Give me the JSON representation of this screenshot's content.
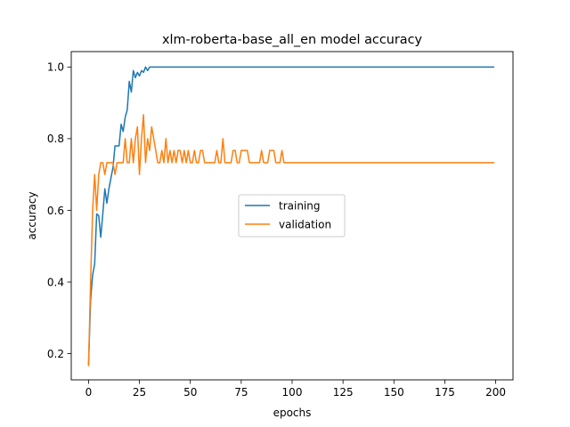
{
  "chart_data": {
    "type": "line",
    "title": "xlm-roberta-base_all_en model accuracy",
    "xlabel": "epochs",
    "ylabel": "accuracy",
    "xlim": [
      -8.5,
      208.5
    ],
    "ylim": [
      0.127,
      1.043
    ],
    "xticks": [
      0,
      25,
      50,
      75,
      100,
      125,
      150,
      175,
      200
    ],
    "yticks": [
      0.2,
      0.4,
      0.6,
      0.8,
      1.0
    ],
    "ytick_labels": [
      "0.2",
      "0.4",
      "0.6",
      "0.8",
      "1.0"
    ],
    "grid": false,
    "legend_position": "center",
    "series": [
      {
        "name": "training",
        "color": "#1f77b4",
        "x": [
          0,
          1,
          2,
          3,
          4,
          5,
          6,
          7,
          8,
          9,
          10,
          11,
          12,
          13,
          14,
          15,
          16,
          17,
          18,
          19,
          20,
          21,
          22,
          23,
          24,
          25,
          26,
          27,
          28,
          29,
          30,
          31,
          32,
          40,
          60,
          80,
          100,
          120,
          140,
          160,
          180,
          199
        ],
        "y": [
          0.17,
          0.35,
          0.42,
          0.45,
          0.59,
          0.585,
          0.525,
          0.59,
          0.66,
          0.62,
          0.66,
          0.69,
          0.72,
          0.78,
          0.78,
          0.78,
          0.84,
          0.82,
          0.86,
          0.88,
          0.96,
          0.93,
          0.99,
          0.97,
          0.985,
          0.975,
          0.99,
          0.985,
          1.0,
          0.99,
          1.0,
          1.0,
          1.0,
          1.0,
          1.0,
          1.0,
          1.0,
          1.0,
          1.0,
          1.0,
          1.0,
          1.0
        ]
      },
      {
        "name": "validation",
        "color": "#ff7f0e",
        "x": [
          0,
          1,
          2,
          3,
          4,
          5,
          6,
          7,
          8,
          9,
          10,
          11,
          12,
          13,
          14,
          15,
          16,
          17,
          18,
          19,
          20,
          21,
          22,
          23,
          24,
          25,
          26,
          27,
          28,
          29,
          30,
          31,
          32,
          33,
          34,
          35,
          36,
          37,
          38,
          39,
          40,
          41,
          42,
          43,
          44,
          45,
          46,
          47,
          48,
          49,
          50,
          51,
          52,
          53,
          54,
          55,
          56,
          57,
          58,
          59,
          60,
          61,
          62,
          63,
          64,
          65,
          66,
          67,
          68,
          69,
          70,
          71,
          72,
          73,
          74,
          75,
          76,
          77,
          78,
          79,
          80,
          81,
          82,
          83,
          84,
          85,
          86,
          87,
          88,
          89,
          90,
          91,
          92,
          93,
          94,
          95,
          96,
          97,
          98,
          100,
          120,
          140,
          160,
          180,
          199
        ],
        "y": [
          0.167,
          0.4,
          0.6,
          0.7,
          0.6,
          0.7,
          0.733,
          0.733,
          0.7,
          0.733,
          0.733,
          0.733,
          0.733,
          0.7,
          0.733,
          0.733,
          0.733,
          0.733,
          0.8,
          0.733,
          0.733,
          0.8,
          0.733,
          0.8,
          0.833,
          0.7,
          0.8,
          0.867,
          0.733,
          0.8,
          0.767,
          0.833,
          0.8,
          0.767,
          0.733,
          0.733,
          0.767,
          0.733,
          0.8,
          0.733,
          0.767,
          0.733,
          0.767,
          0.733,
          0.767,
          0.767,
          0.733,
          0.767,
          0.733,
          0.767,
          0.733,
          0.733,
          0.767,
          0.733,
          0.733,
          0.767,
          0.767,
          0.733,
          0.733,
          0.733,
          0.733,
          0.733,
          0.733,
          0.767,
          0.733,
          0.733,
          0.8,
          0.733,
          0.733,
          0.733,
          0.733,
          0.767,
          0.767,
          0.733,
          0.733,
          0.767,
          0.767,
          0.767,
          0.767,
          0.733,
          0.733,
          0.733,
          0.733,
          0.733,
          0.733,
          0.767,
          0.733,
          0.733,
          0.733,
          0.767,
          0.767,
          0.767,
          0.733,
          0.733,
          0.733,
          0.767,
          0.733,
          0.733,
          0.733,
          0.733,
          0.733,
          0.733,
          0.733,
          0.733,
          0.733
        ]
      }
    ]
  }
}
